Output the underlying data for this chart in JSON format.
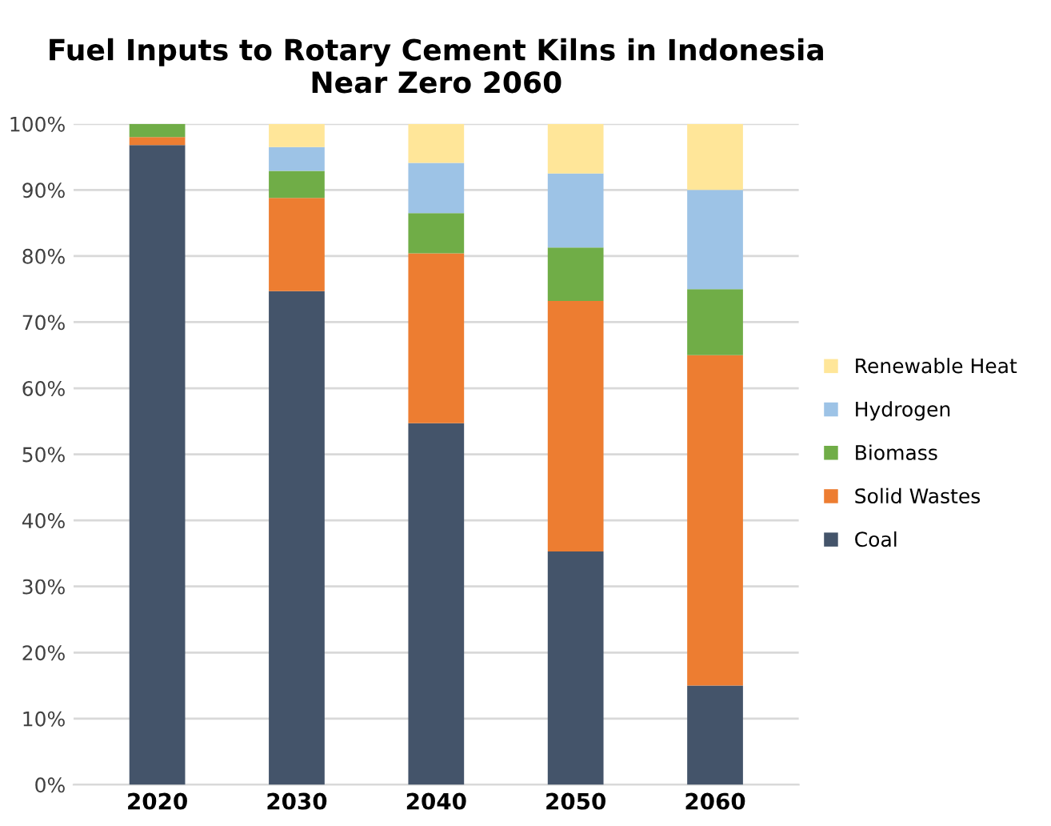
{
  "chart_data": {
    "type": "bar",
    "stacked": true,
    "title": "Fuel Inputs to Rotary Cement Kilns in Indonesia\nNear Zero 2060",
    "categories": [
      "2020",
      "2030",
      "2040",
      "2050",
      "2060"
    ],
    "series": [
      {
        "name": "Coal",
        "color": "#44546a",
        "values": [
          96.8,
          74.7,
          54.7,
          35.3,
          15
        ]
      },
      {
        "name": "Solid Wastes",
        "color": "#ed7d31",
        "values": [
          1.2,
          14.1,
          25.7,
          37.9,
          50
        ]
      },
      {
        "name": "Biomass",
        "color": "#70ad47",
        "values": [
          2.0,
          4.1,
          6.1,
          8.1,
          10
        ]
      },
      {
        "name": "Hydrogen",
        "color": "#9dc3e6",
        "values": [
          0,
          3.6,
          7.6,
          11.2,
          15
        ]
      },
      {
        "name": "Renewable Heat",
        "color": "#ffe699",
        "values": [
          0,
          3.5,
          5.9,
          7.5,
          10
        ]
      }
    ],
    "ylim": [
      0,
      100
    ],
    "yticks": [
      {
        "value": 0,
        "label": "0%"
      },
      {
        "value": 10,
        "label": "10%"
      },
      {
        "value": 20,
        "label": "20%"
      },
      {
        "value": 30,
        "label": "30%"
      },
      {
        "value": 40,
        "label": "40%"
      },
      {
        "value": 50,
        "label": "50%"
      },
      {
        "value": 60,
        "label": "60%"
      },
      {
        "value": 70,
        "label": "70%"
      },
      {
        "value": 80,
        "label": "80%"
      },
      {
        "value": 90,
        "label": "90%"
      },
      {
        "value": 100,
        "label": "100%"
      }
    ],
    "grid": "y",
    "legend": "right"
  }
}
